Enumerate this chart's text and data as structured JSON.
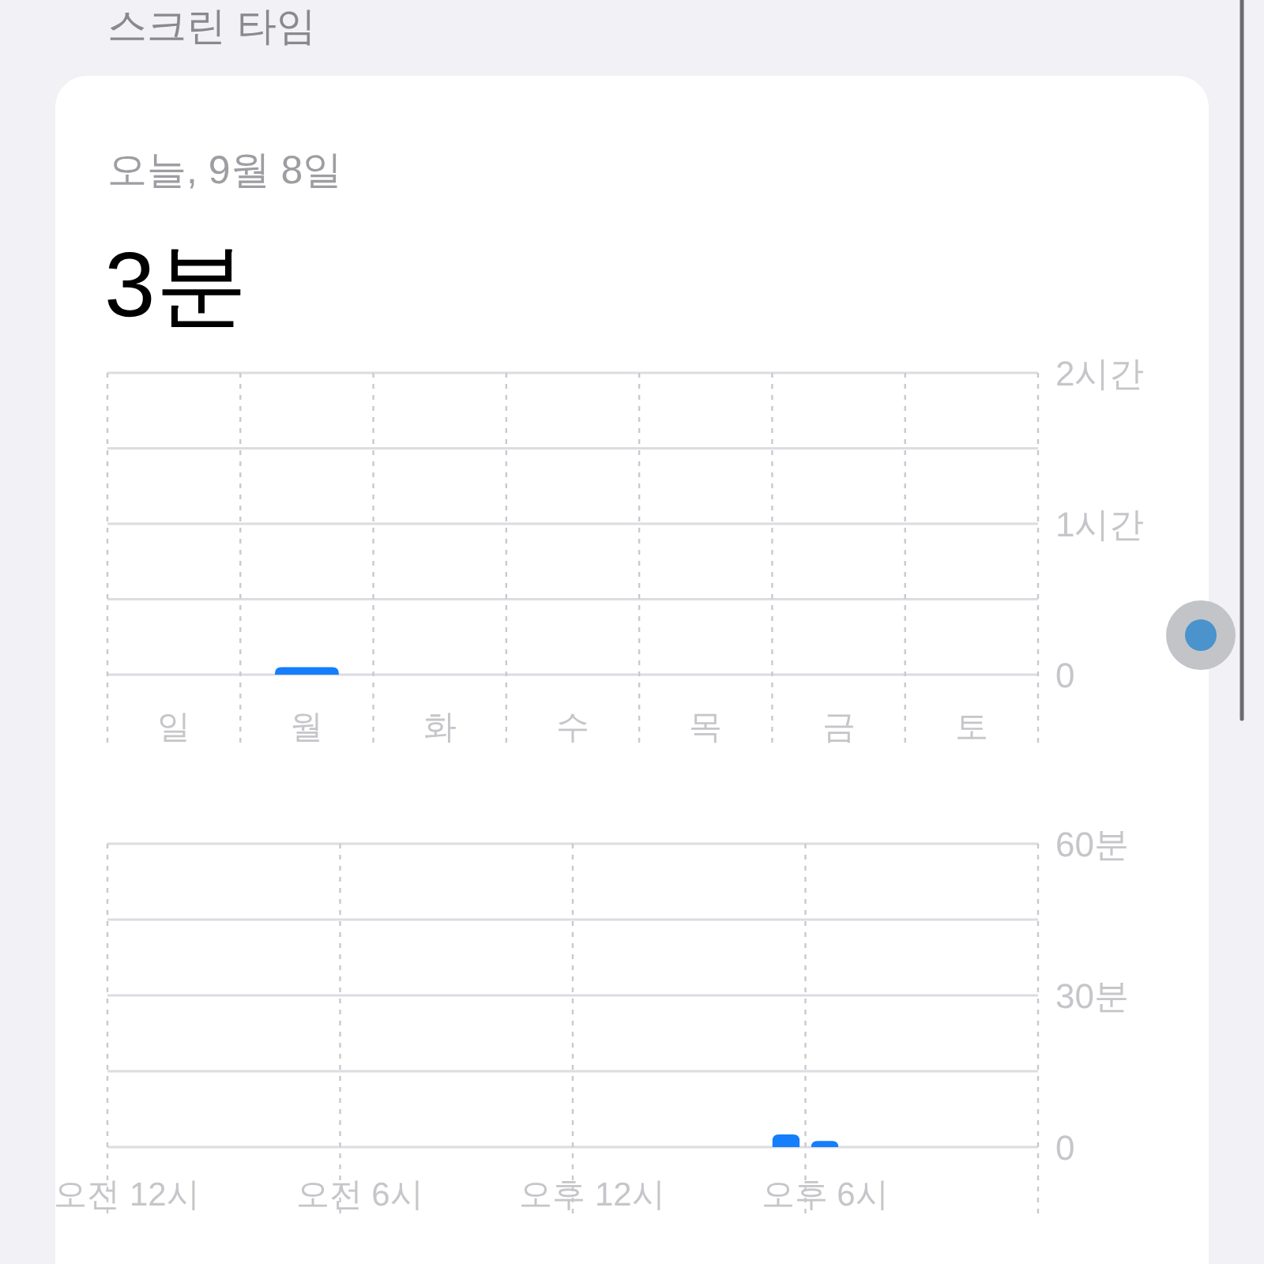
{
  "chart_data": [
    {
      "type": "bar",
      "title": "스크린 타임",
      "subtitle": "오늘, 9월 8일",
      "annotations": [
        "3분"
      ],
      "categories": [
        "일",
        "월",
        "화",
        "수",
        "목",
        "금",
        "토"
      ],
      "values": [
        null,
        0.05,
        null,
        null,
        null,
        null,
        null
      ],
      "color": "#147efb",
      "ylim": [
        0,
        2
      ],
      "yticks": [
        0,
        {
          "value": 0.5,
          "label": null
        },
        {
          "value": 1,
          "label": "1시간"
        },
        {
          "value": 1.5,
          "label": null
        },
        {
          "value": 2,
          "label": "2시간"
        }
      ],
      "grid": true
    },
    {
      "type": "bar",
      "categories": [
        "오전 12시",
        null,
        null,
        null,
        null,
        null,
        "오전 6시",
        null,
        null,
        null,
        null,
        null,
        "오후 12시",
        null,
        null,
        null,
        null,
        null,
        "오후 6시",
        null,
        null,
        null,
        null,
        null
      ],
      "values": [
        null,
        null,
        null,
        null,
        null,
        null,
        null,
        null,
        null,
        null,
        null,
        null,
        null,
        null,
        null,
        null,
        null,
        2.5,
        1.2,
        null,
        null,
        null,
        null,
        null
      ],
      "color": "#147efb",
      "ylim": [
        0,
        60
      ],
      "yticks": [
        0,
        {
          "value": 15,
          "label": null
        },
        {
          "value": 30,
          "label": "30분"
        },
        {
          "value": 45,
          "label": null
        },
        {
          "value": 60,
          "label": "60분"
        }
      ],
      "grid": true
    }
  ]
}
